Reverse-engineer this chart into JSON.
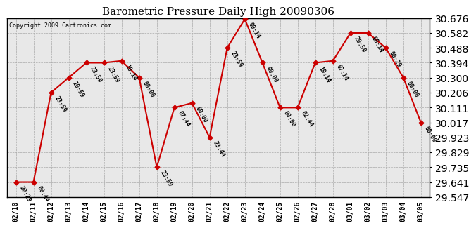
{
  "title": "Barometric Pressure Daily High 20090306",
  "copyright": "Copyright 2009 Cartronics.com",
  "x_labels": [
    "02/10",
    "02/11",
    "02/12",
    "02/13",
    "02/14",
    "02/15",
    "02/16",
    "02/17",
    "02/18",
    "02/19",
    "02/20",
    "02/21",
    "02/22",
    "02/23",
    "02/24",
    "02/25",
    "02/26",
    "02/27",
    "02/28",
    "03/01",
    "03/02",
    "03/03",
    "03/04",
    "03/05"
  ],
  "y_values": [
    29.641,
    29.641,
    30.206,
    30.3,
    30.394,
    30.394,
    30.406,
    30.3,
    29.735,
    30.111,
    30.14,
    29.923,
    30.488,
    30.67,
    30.394,
    30.111,
    30.111,
    30.394,
    30.406,
    30.582,
    30.582,
    30.488,
    30.3,
    30.017
  ],
  "point_labels": [
    "20:29",
    "00:44",
    "23:59",
    "10:59",
    "23:59",
    "23:59",
    "10:14",
    "00:00",
    "23:59",
    "07:44",
    "00:00",
    "23:44",
    "23:59",
    "09:14",
    "00:00",
    "00:00",
    "02:44",
    "19:14",
    "07:14",
    "20:59",
    "08:14",
    "00:29",
    "00:00",
    "00:00"
  ],
  "line_color": "#cc0000",
  "marker_color": "#cc0000",
  "bg_color": "#ffffff",
  "plot_bg_color": "#e8e8e8",
  "grid_color": "#aaaaaa",
  "ylim_min": 29.547,
  "ylim_max": 30.676,
  "yticks": [
    29.547,
    29.641,
    29.735,
    29.829,
    29.923,
    30.017,
    30.111,
    30.206,
    30.3,
    30.394,
    30.488,
    30.582,
    30.676
  ],
  "title_fontsize": 11,
  "label_fontsize": 6,
  "tick_fontsize": 7,
  "copyright_fontsize": 6
}
